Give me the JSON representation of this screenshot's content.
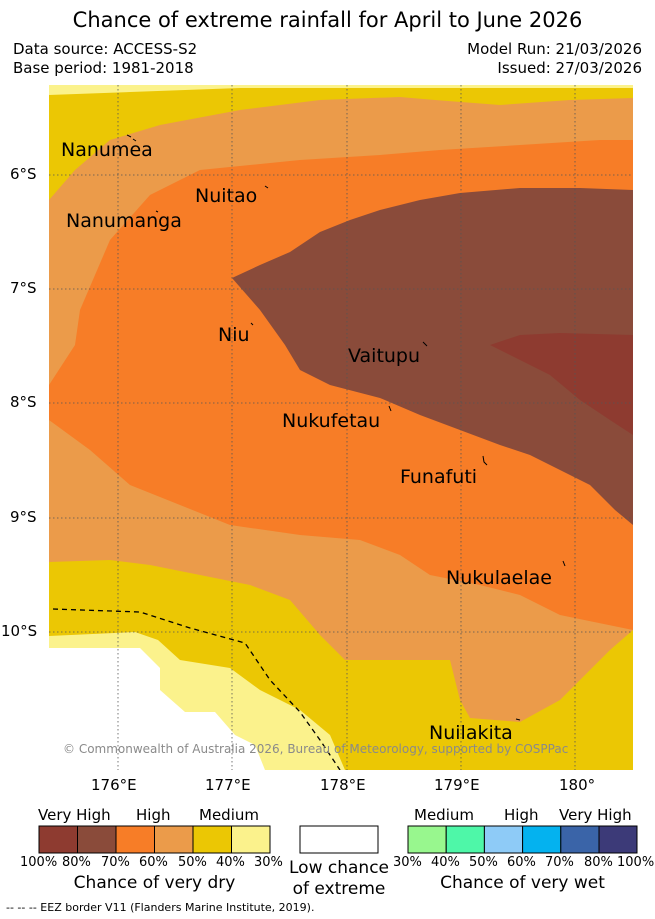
{
  "header": {
    "title": "Chance of extreme rainfall for April to June 2026",
    "data_source": "Data source: ACCESS-S2",
    "base_period": "Base period: 1981-2018",
    "model_run": "Model Run: 21/03/2026",
    "issued": "Issued: 27/03/2026"
  },
  "axes": {
    "lat_labels": [
      "6°S",
      "7°S",
      "8°S",
      "9°S",
      "10°S"
    ],
    "lon_labels": [
      "176°E",
      "177°E",
      "178°E",
      "179°E",
      "180°"
    ]
  },
  "places": [
    {
      "name": "Nanumea"
    },
    {
      "name": "Nuitao"
    },
    {
      "name": "Nanumanga"
    },
    {
      "name": "Niu"
    },
    {
      "name": "Vaitupu"
    },
    {
      "name": "Nukufetau"
    },
    {
      "name": "Funafuti"
    },
    {
      "name": "Nukulaelae"
    },
    {
      "name": "Nuilakita"
    }
  ],
  "copyright": "© Commonwealth of Australia 2026, Bureau of Meteorology, supported by COSPPac",
  "legend": {
    "dry": {
      "headers": [
        "Very High",
        "High",
        "Medium"
      ],
      "percents": [
        "100%",
        "80%",
        "70%",
        "60%",
        "50%",
        "40%",
        "30%"
      ],
      "colors": [
        "#8e3b30",
        "#8a4b3a",
        "#f77d27",
        "#eb9b4a",
        "#ebc704",
        "#fbf28c"
      ],
      "caption": "Chance of very dry"
    },
    "neutral": {
      "caption_line1": "Low chance",
      "caption_line2": "of extreme"
    },
    "wet": {
      "headers": [
        "Medium",
        "High",
        "Very High"
      ],
      "percents": [
        "30%",
        "40%",
        "50%",
        "60%",
        "70%",
        "80%",
        "100%"
      ],
      "colors": [
        "#98f78e",
        "#4ef7a8",
        "#8ecbf7",
        "#04b2ef",
        "#3a64a8",
        "#3c3a78"
      ],
      "caption": "Chance of very wet"
    }
  },
  "eez_note": "-- -- -- EEZ border V11 (Flanders Marine Institute, 2019)."
}
